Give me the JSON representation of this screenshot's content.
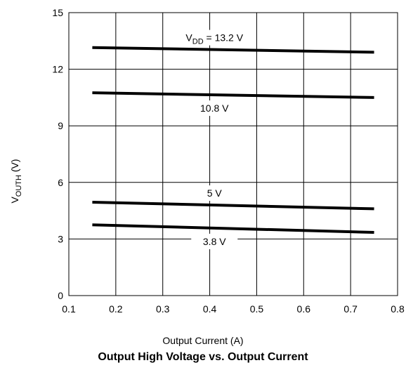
{
  "chart_data": {
    "type": "line",
    "title": "Output High Voltage vs. Output Current",
    "xlabel": "Output Current (A)",
    "ylabel": {
      "main": "V",
      "sub": "OUTH",
      "unit": " (V)"
    },
    "xlim": [
      0.1,
      0.8
    ],
    "ylim": [
      0,
      15
    ],
    "xticks": [
      "0.1",
      "0.2",
      "0.3",
      "0.4",
      "0.5",
      "0.6",
      "0.7",
      "0.8"
    ],
    "yticks": [
      "0",
      "3",
      "6",
      "9",
      "12",
      "15"
    ],
    "grid": true,
    "series": [
      {
        "name": "VDD = 13.2 V",
        "label": {
          "prefix": "V",
          "sub": "DD",
          "text": " = 13.2 V"
        },
        "x": [
          0.15,
          0.75
        ],
        "y": [
          13.15,
          12.9
        ]
      },
      {
        "name": "10.8 V",
        "label": {
          "prefix": "",
          "sub": "",
          "text": "10.8 V"
        },
        "x": [
          0.15,
          0.75
        ],
        "y": [
          10.75,
          10.5
        ]
      },
      {
        "name": "5 V",
        "label": {
          "prefix": "",
          "sub": "",
          "text": "5 V"
        },
        "x": [
          0.15,
          0.75
        ],
        "y": [
          4.95,
          4.6
        ]
      },
      {
        "name": "3.8 V",
        "label": {
          "prefix": "",
          "sub": "",
          "text": "3.8 V"
        },
        "x": [
          0.15,
          0.75
        ],
        "y": [
          3.75,
          3.35
        ]
      }
    ]
  }
}
